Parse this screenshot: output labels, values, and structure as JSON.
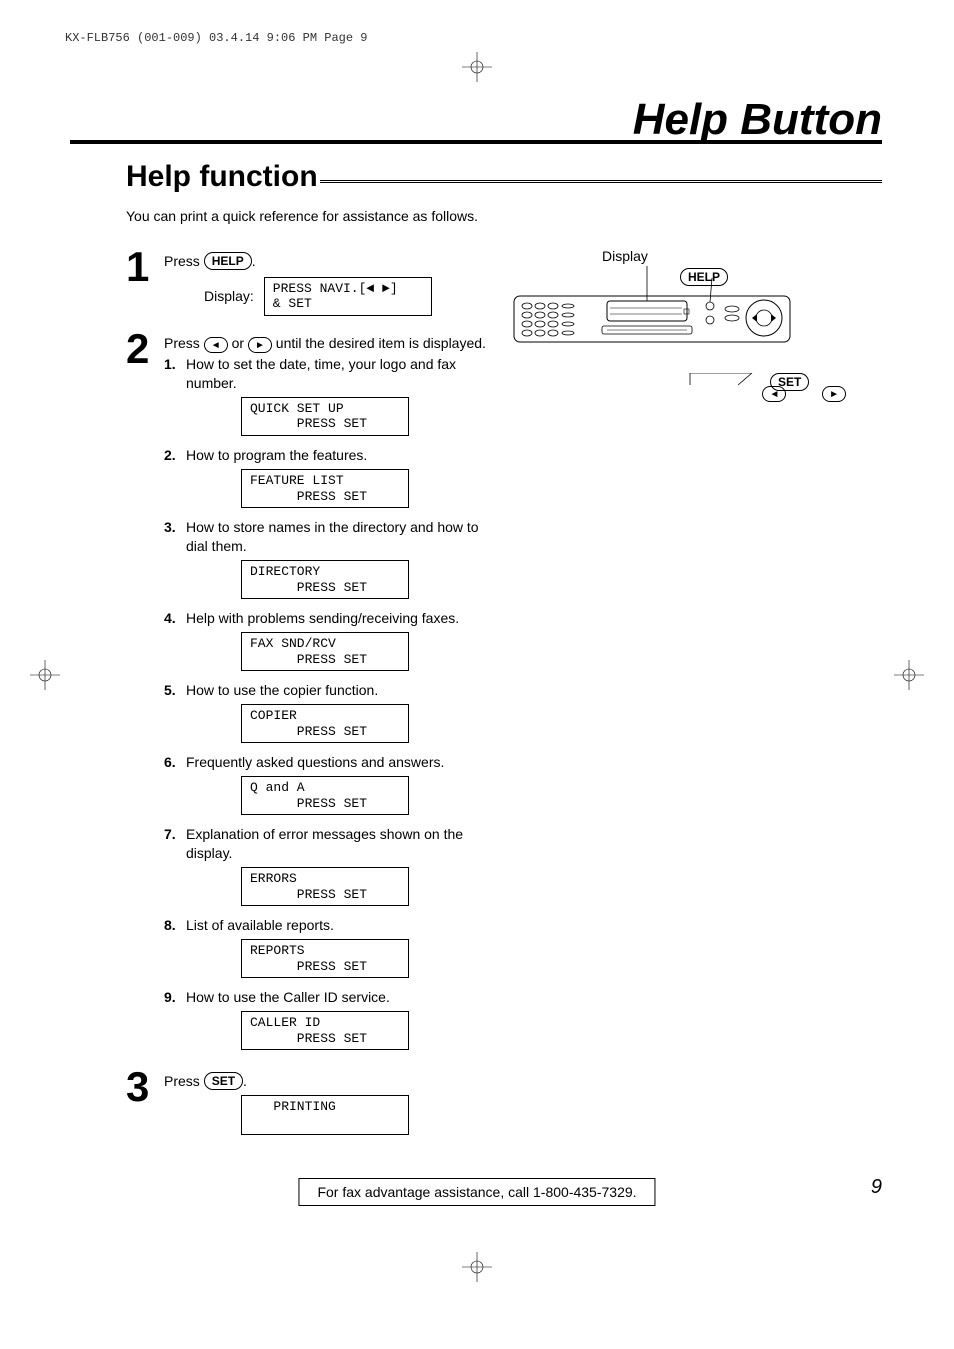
{
  "print_header": "KX-FLB756 (001-009)  03.4.14  9:06 PM  Page 9",
  "main_title": "Help Button",
  "section_title": "Help function",
  "intro": "You can print a quick reference for assistance as follows.",
  "device_label": "Display",
  "keys": {
    "help": "HELP",
    "set": "SET",
    "left": "◄",
    "right": "►"
  },
  "steps": [
    {
      "num": "1",
      "prefix": "Press ",
      "key": "HELP",
      "suffix": ".",
      "display_label": "Display:",
      "lcd": "PRESS NAVI.[◄ ►]\n& SET"
    },
    {
      "num": "2",
      "prefix": "Press ",
      "arrow_left": "◄",
      "mid": " or ",
      "arrow_right": "►",
      "suffix": " until the desired item is displayed.",
      "subs": [
        {
          "n": "1.",
          "text": "How to set the date, time, your logo and fax number.",
          "lcd": "QUICK SET UP\n      PRESS SET"
        },
        {
          "n": "2.",
          "text": "How to program the features.",
          "lcd": "FEATURE LIST\n      PRESS SET"
        },
        {
          "n": "3.",
          "text": "How to store names in the directory and how to dial them.",
          "lcd": "DIRECTORY\n      PRESS SET"
        },
        {
          "n": "4.",
          "text": "Help with problems sending/receiving faxes.",
          "lcd": "FAX SND/RCV\n      PRESS SET"
        },
        {
          "n": "5.",
          "text": "How to use the copier function.",
          "lcd": "COPIER\n      PRESS SET"
        },
        {
          "n": "6.",
          "text": "Frequently asked questions and answers.",
          "lcd": "Q and A\n      PRESS SET"
        },
        {
          "n": "7.",
          "text": "Explanation of error messages shown on the display.",
          "lcd": "ERRORS\n      PRESS SET"
        },
        {
          "n": "8.",
          "text": "List of available reports.",
          "lcd": "REPORTS\n      PRESS SET"
        },
        {
          "n": "9.",
          "text": "How to use the Caller ID service.",
          "lcd": "CALLER ID\n      PRESS SET"
        }
      ]
    },
    {
      "num": "3",
      "prefix": "Press ",
      "key": "SET",
      "suffix": ".",
      "lcd": "   PRINTING\n "
    }
  ],
  "footer": "For fax advantage assistance, call 1-800-435-7329.",
  "page_num": "9",
  "colors": {
    "text": "#000000",
    "background": "#ffffff"
  }
}
